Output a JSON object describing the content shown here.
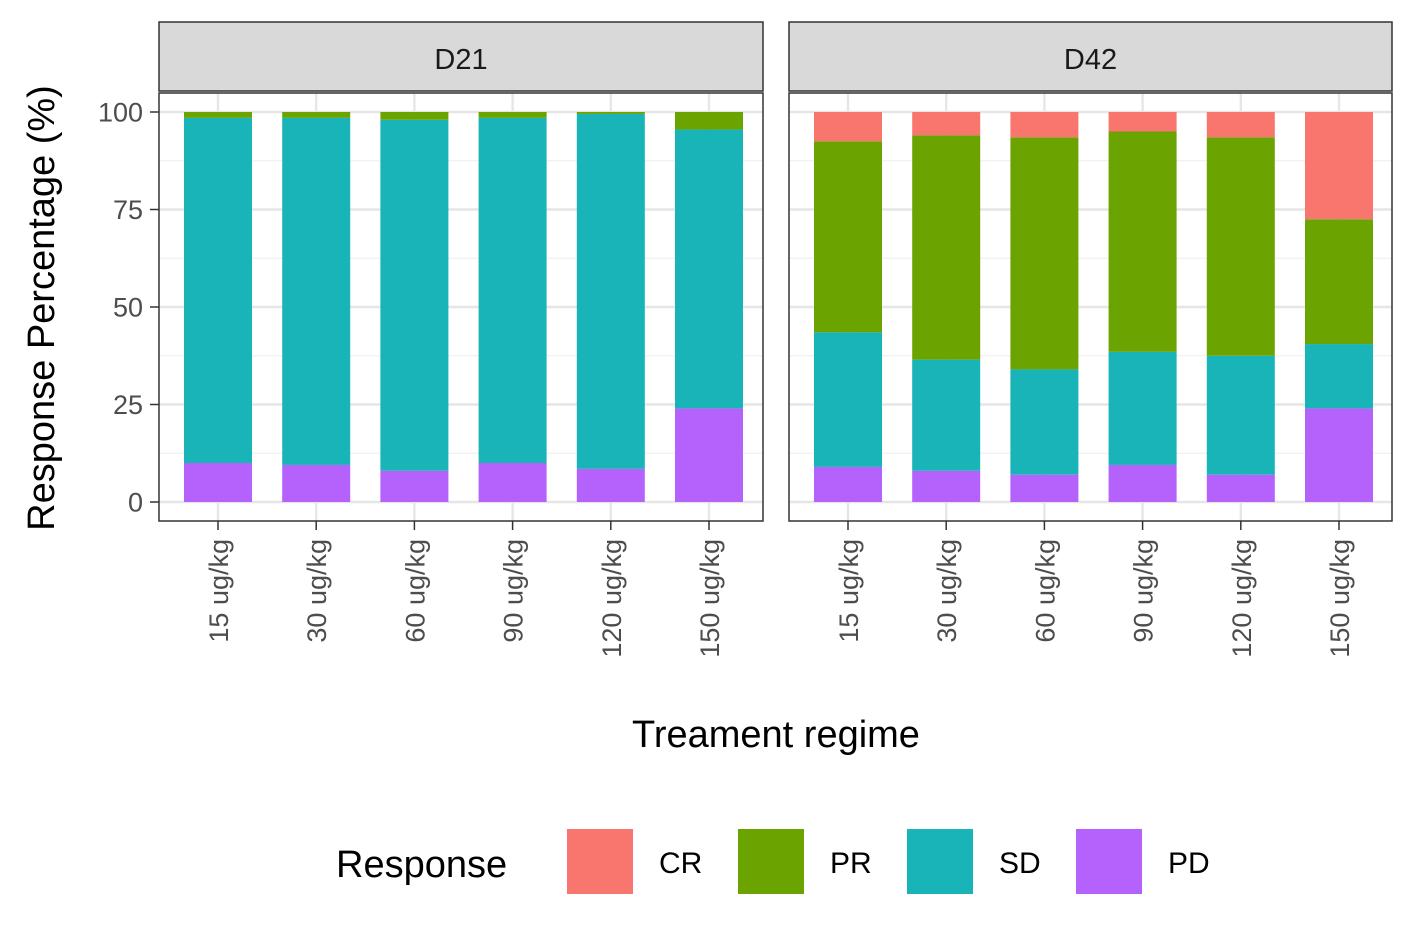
{
  "chart_data": {
    "type": "bar",
    "stacked": true,
    "xlabel": "Treament regime",
    "ylabel": "Response Percentage (%)",
    "ylim": [
      0,
      100
    ],
    "yticks": [
      0,
      25,
      50,
      75,
      100
    ],
    "grid": true,
    "legend": {
      "title": "Response",
      "position": "bottom",
      "entries": [
        {
          "key": "CR",
          "label": "CR",
          "color": "#F8766D"
        },
        {
          "key": "PR",
          "label": "PR",
          "color": "#6BA400"
        },
        {
          "key": "SD",
          "label": "SD",
          "color": "#19B4B8"
        },
        {
          "key": "PD",
          "label": "PD",
          "color": "#B561FB"
        }
      ]
    },
    "categories": [
      "15 ug/kg",
      "30 ug/kg",
      "60 ug/kg",
      "90 ug/kg",
      "120 ug/kg",
      "150 ug/kg"
    ],
    "facets": [
      {
        "label": "D21",
        "series": [
          {
            "name": "PD",
            "values": [
              10,
              9.5,
              8,
              10,
              8.5,
              24
            ]
          },
          {
            "name": "SD",
            "values": [
              88.5,
              89,
              90,
              88.5,
              91,
              71.5
            ]
          },
          {
            "name": "PR",
            "values": [
              1.5,
              1.5,
              2,
              1.5,
              0.5,
              4.5
            ]
          },
          {
            "name": "CR",
            "values": [
              0,
              0,
              0,
              0,
              0,
              0
            ]
          }
        ]
      },
      {
        "label": "D42",
        "series": [
          {
            "name": "PD",
            "values": [
              9,
              8,
              7,
              9.5,
              7,
              24
            ]
          },
          {
            "name": "SD",
            "values": [
              34.5,
              28.5,
              27,
              29,
              30.5,
              16.5
            ]
          },
          {
            "name": "PR",
            "values": [
              49,
              57.5,
              59.5,
              56.5,
              56,
              32
            ]
          },
          {
            "name": "CR",
            "values": [
              7.5,
              6,
              6.5,
              5,
              6.5,
              27.5
            ]
          }
        ]
      }
    ]
  }
}
